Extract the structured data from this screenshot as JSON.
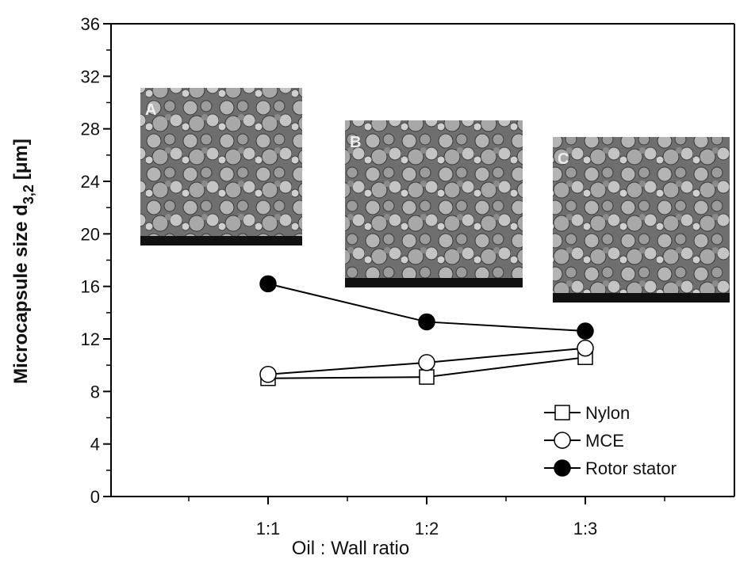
{
  "chart_data": {
    "type": "line",
    "ylabel": "Microcapsule size d",
    "ylabel_subscript": "3,2",
    "ylabel_unit": "[μm]",
    "xlabel": "Oil : Wall ratio",
    "categories": [
      "1:1",
      "1:2",
      "1:3"
    ],
    "series": [
      {
        "name": "Nylon",
        "marker": "open-square",
        "color": "#000000",
        "values": [
          9.0,
          9.1,
          10.6
        ]
      },
      {
        "name": "MCE",
        "marker": "open-circle",
        "color": "#000000",
        "values": [
          9.3,
          10.2,
          11.3
        ]
      },
      {
        "name": "Rotor stator",
        "marker": "filled-circle",
        "color": "#000000",
        "values": [
          16.2,
          13.3,
          12.6
        ]
      }
    ],
    "ylim": [
      0,
      36
    ],
    "yticks": [
      0,
      4,
      8,
      12,
      16,
      20,
      24,
      28,
      32,
      36
    ],
    "legend": "lower right",
    "insets": [
      {
        "label": "A"
      },
      {
        "label": "B"
      },
      {
        "label": "C"
      }
    ]
  }
}
